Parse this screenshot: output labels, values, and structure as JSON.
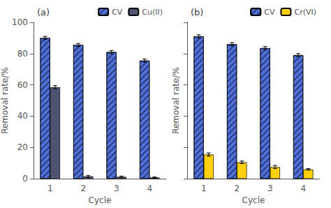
{
  "chart_data": [
    {
      "type": "bar",
      "title": "(a)",
      "xlabel": "Cycle",
      "ylabel": "Removal rate/%",
      "categories": [
        "1",
        "2",
        "3",
        "4"
      ],
      "series": [
        {
          "name": "CV",
          "values": [
            90.0,
            85.5,
            81.0,
            75.5
          ],
          "errors": [
            1.0,
            1.0,
            1.0,
            1.0
          ]
        },
        {
          "name": "Cu(II)",
          "values": [
            58.5,
            1.5,
            1.2,
            0.8
          ],
          "errors": [
            1.0,
            0.5,
            0.5,
            0.4
          ]
        }
      ],
      "ylim": [
        0,
        100
      ],
      "yticks": [
        0,
        20,
        40,
        60,
        80,
        100
      ],
      "grid": false,
      "legend": "upper right"
    },
    {
      "type": "bar",
      "title": "(b)",
      "xlabel": "Cycle",
      "ylabel": "Removal rate/%",
      "categories": [
        "1",
        "2",
        "3",
        "4"
      ],
      "series": [
        {
          "name": "CV",
          "values": [
            91.0,
            86.0,
            83.5,
            79.0
          ],
          "errors": [
            1.0,
            1.0,
            1.0,
            1.0
          ]
        },
        {
          "name": "Cr(VI)",
          "values": [
            15.5,
            10.5,
            7.5,
            6.0
          ],
          "errors": [
            1.0,
            0.8,
            1.0,
            0.5
          ]
        }
      ],
      "ylim": [
        0,
        100
      ],
      "yticks": [
        0,
        20,
        40,
        60,
        80,
        100
      ],
      "grid": false,
      "legend": "upper right",
      "tick_labels": "x"
    }
  ]
}
